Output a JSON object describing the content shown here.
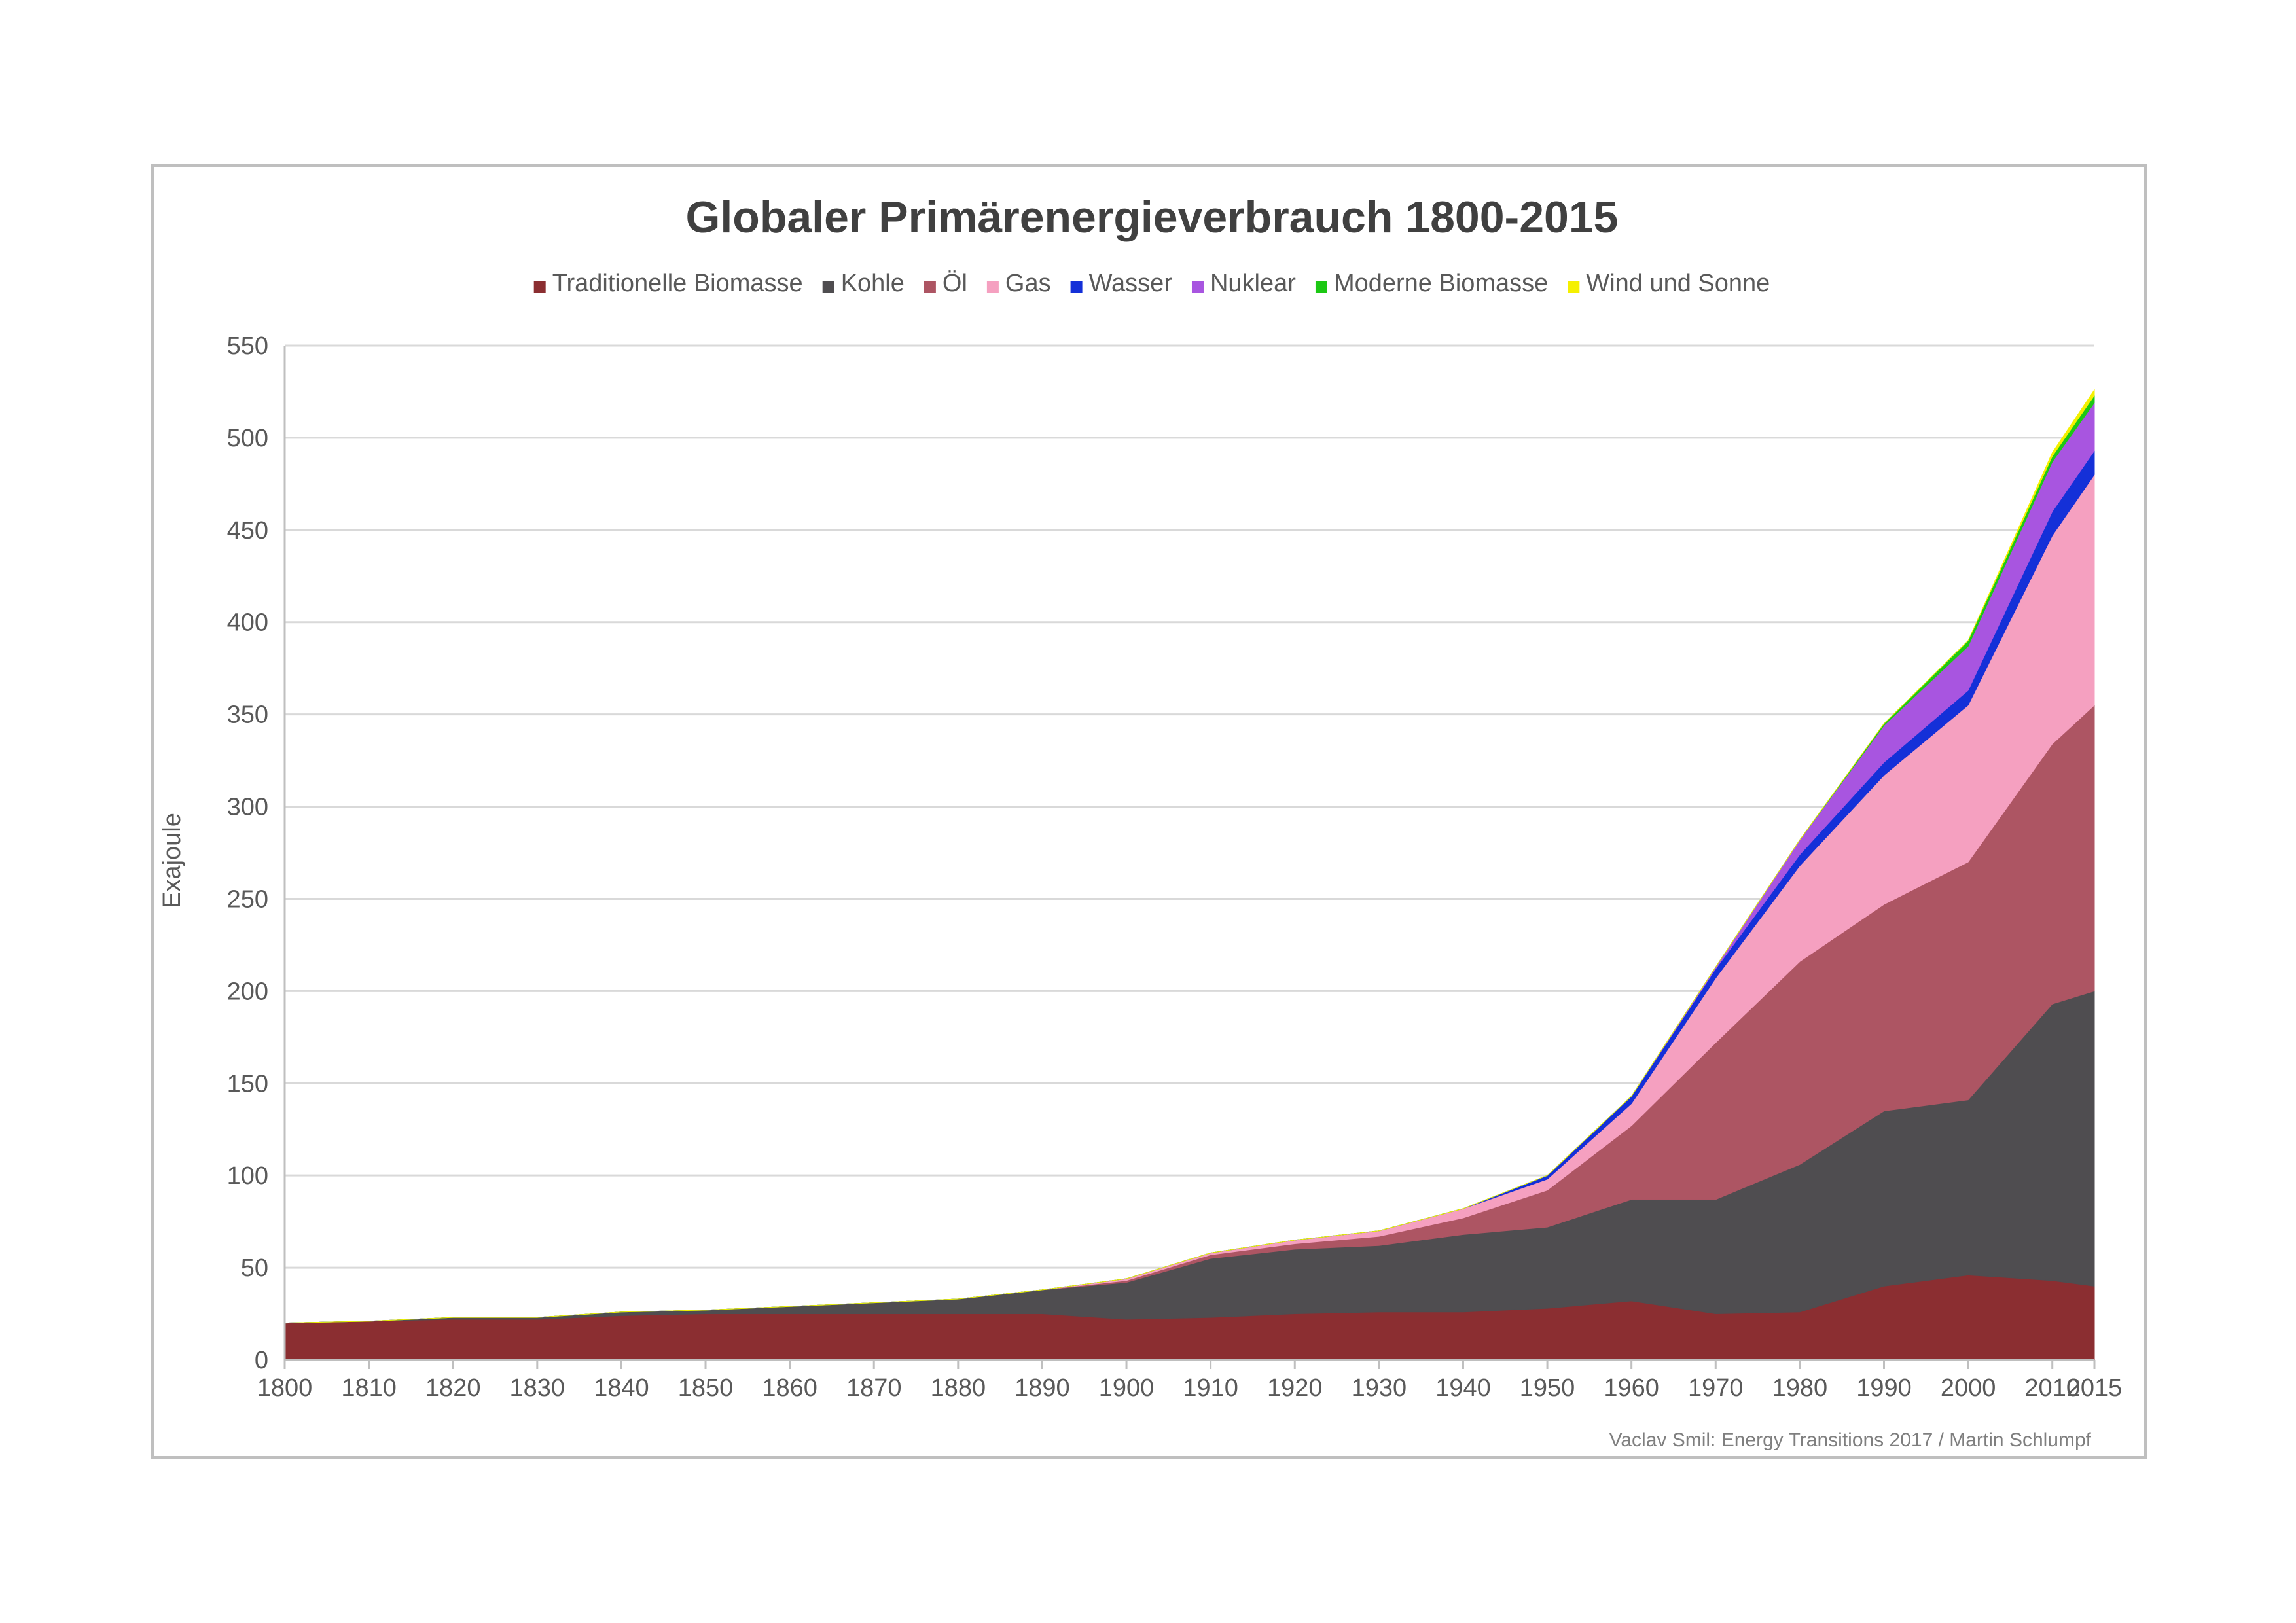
{
  "chart_data": {
    "type": "area",
    "stacked": true,
    "title": "Globaler Primärenergieverbrauch 1800-2015",
    "ylabel": "Exajoule",
    "xlabel": "",
    "ylim": [
      0,
      550
    ],
    "yticks": [
      0,
      50,
      100,
      150,
      200,
      250,
      300,
      350,
      400,
      450,
      500,
      550
    ],
    "grid": true,
    "legend": "top",
    "source": "Vaclav Smil: Energy Transitions 2017 / Martin Schlumpf",
    "x": [
      1800,
      1810,
      1820,
      1830,
      1840,
      1850,
      1860,
      1870,
      1880,
      1890,
      1900,
      1910,
      1920,
      1930,
      1940,
      1950,
      1960,
      1970,
      1980,
      1990,
      2000,
      2010,
      2015
    ],
    "series": [
      {
        "name": "Traditionelle Biomasse",
        "color": "#8b2e31",
        "values": [
          20,
          21,
          22,
          22,
          24,
          25,
          25,
          25,
          25,
          25,
          22,
          23,
          25,
          26,
          26,
          28,
          32,
          25,
          26,
          40,
          46,
          43,
          40
        ]
      },
      {
        "name": "Kohle",
        "color": "#4f4d50",
        "values": [
          0,
          0,
          1,
          1,
          2,
          2,
          4,
          6,
          8,
          13,
          20,
          32,
          35,
          36,
          42,
          44,
          55,
          62,
          80,
          95,
          95,
          150,
          160
        ]
      },
      {
        "name": "Öl",
        "color": "#ad5563",
        "values": [
          0,
          0,
          0,
          0,
          0,
          0,
          0,
          0,
          0,
          0,
          1,
          2,
          3,
          5,
          9,
          20,
          40,
          85,
          110,
          112,
          129,
          141,
          155
        ]
      },
      {
        "name": "Gas",
        "color": "#f5a0c0",
        "values": [
          0,
          0,
          0,
          0,
          0,
          0,
          0,
          0,
          0,
          0,
          1,
          1,
          2,
          3,
          5,
          6,
          12,
          35,
          52,
          70,
          85,
          113,
          125
        ]
      },
      {
        "name": "Wasser",
        "color": "#1430d8",
        "values": [
          0,
          0,
          0,
          0,
          0,
          0,
          0,
          0,
          0,
          0,
          0,
          0,
          0,
          0,
          0,
          2,
          4,
          5,
          6,
          7,
          8,
          13,
          13
        ]
      },
      {
        "name": "Nuklear",
        "color": "#a855e0",
        "values": [
          0,
          0,
          0,
          0,
          0,
          0,
          0,
          0,
          0,
          0,
          0,
          0,
          0,
          0,
          0,
          0,
          0,
          1,
          8,
          20,
          24,
          27,
          26
        ]
      },
      {
        "name": "Moderne Biomasse",
        "color": "#1cc814",
        "values": [
          0,
          0,
          0,
          0,
          0,
          0,
          0,
          0,
          0,
          0,
          0,
          0,
          0,
          0,
          0,
          0,
          0,
          0,
          0,
          1,
          3,
          3,
          4
        ]
      },
      {
        "name": "Wind und Sonne",
        "color": "#f5f000",
        "values": [
          0,
          0,
          0,
          0,
          0,
          0,
          0,
          0,
          0,
          0,
          0,
          0,
          0,
          0,
          0,
          0,
          0,
          0,
          0,
          0,
          0,
          2,
          3
        ]
      }
    ]
  }
}
